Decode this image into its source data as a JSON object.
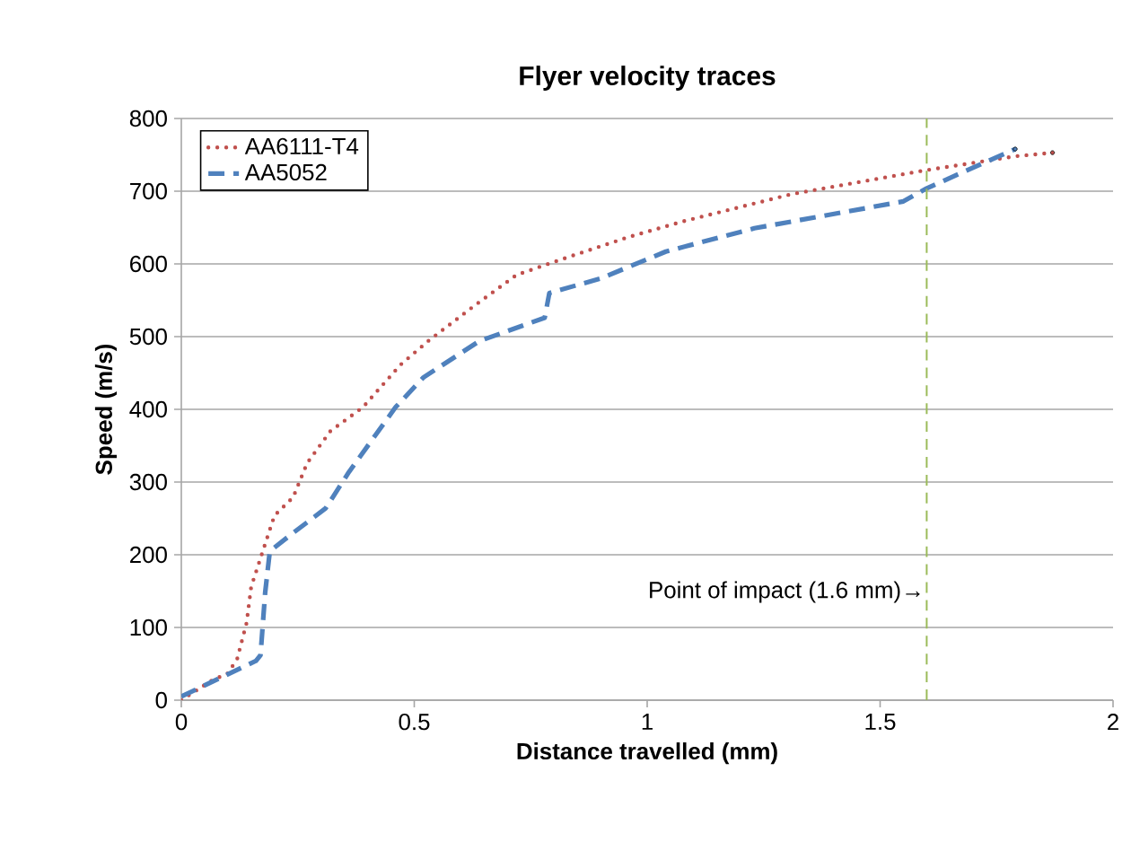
{
  "chart_data": {
    "type": "line",
    "title": "Flyer velocity traces",
    "xlabel": "Distance travelled (mm)",
    "ylabel": "Speed (m/s)",
    "xlim": [
      0,
      2
    ],
    "xticks": [
      0,
      0.5,
      1,
      1.5,
      2
    ],
    "ylim": [
      0,
      800
    ],
    "yticks": [
      0,
      100,
      200,
      300,
      400,
      500,
      600,
      700,
      800
    ],
    "grid": "y",
    "legend": "top left",
    "series": [
      {
        "name": "AA6111-T4",
        "color": "#c0504d",
        "line_style": "dotted",
        "x": [
          0.0,
          0.065,
          0.1,
          0.12,
          0.14,
          0.15,
          0.18,
          0.2,
          0.24,
          0.27,
          0.32,
          0.39,
          0.47,
          0.53,
          0.63,
          0.72,
          0.81,
          0.96,
          1.08,
          1.31,
          1.59,
          1.79,
          1.87
        ],
        "values": [
          0,
          27,
          37,
          57,
          106,
          156,
          215,
          254,
          279,
          326,
          370,
          403,
          461,
          494,
          543,
          585,
          605,
          637,
          659,
          696,
          728,
          748,
          753
        ]
      },
      {
        "name": "AA5052",
        "color": "#4f81bd",
        "line_style": "dashed",
        "x": [
          0.0,
          0.16,
          0.17,
          0.18,
          0.19,
          0.24,
          0.31,
          0.36,
          0.46,
          0.52,
          0.64,
          0.78,
          0.79,
          0.9,
          1.04,
          1.23,
          1.55,
          1.6,
          1.73,
          1.79
        ],
        "values": [
          5,
          54,
          62,
          148,
          205,
          230,
          264,
          314,
          403,
          444,
          494,
          526,
          560,
          580,
          617,
          649,
          686,
          704,
          741,
          758
        ]
      }
    ],
    "ref_lines": [
      {
        "axis": "x",
        "value": 1.6,
        "label": "Point of impact (1.6 mm)→",
        "color": "#9bbb59",
        "line_style": "dashed"
      }
    ]
  }
}
